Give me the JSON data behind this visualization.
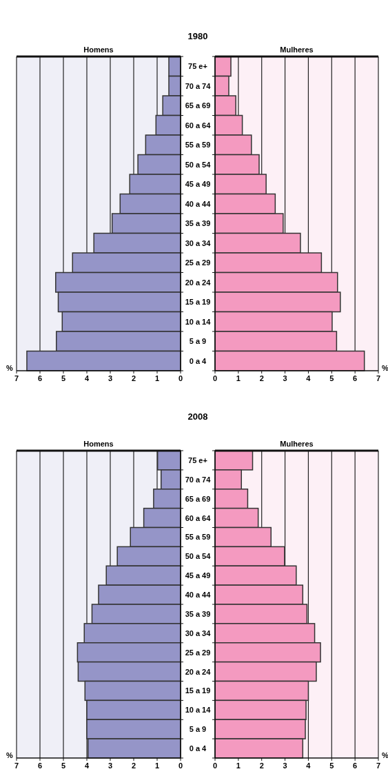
{
  "chart_data": [
    {
      "type": "bar",
      "orientation": "horizontal",
      "title": "1980",
      "subtitle": "Homens",
      "xlabel": "%",
      "categories": [
        "75 e+",
        "70 a 74",
        "65 a 69",
        "60 a 64",
        "55 a 59",
        "50 a 54",
        "45 a 49",
        "40 a 44",
        "35 a 39",
        "30 a 34",
        "25 a 29",
        "20 a 24",
        "15 a 19",
        "10 a 14",
        "5 a 9",
        "0 a 4"
      ],
      "color": "#9595c8",
      "values": [
        0.5,
        0.5,
        0.76,
        1.05,
        1.49,
        1.82,
        2.17,
        2.58,
        2.92,
        3.7,
        4.61,
        5.33,
        5.22,
        5.05,
        5.3,
        6.56
      ],
      "xlim": [
        7,
        0
      ],
      "xticks": [
        7,
        6,
        5,
        4,
        3,
        2,
        1,
        0
      ],
      "grid": "x"
    },
    {
      "type": "bar",
      "orientation": "horizontal",
      "subtitle": "Mulheres",
      "xlabel": "%",
      "categories": [
        "75 e+",
        "70 a 74",
        "65 a 69",
        "60 a 64",
        "55 a 59",
        "50 a 54",
        "45 a 49",
        "40 a 44",
        "35 a 39",
        "30 a 34",
        "25 a 29",
        "20 a 24",
        "15 a 19",
        "10 a 14",
        "5 a 9",
        "0 a 4"
      ],
      "color": "#f49ac0",
      "values": [
        0.68,
        0.59,
        0.89,
        1.17,
        1.56,
        1.89,
        2.19,
        2.58,
        2.92,
        3.66,
        4.56,
        5.25,
        5.37,
        5.02,
        5.21,
        6.4
      ],
      "xlim": [
        0,
        7
      ],
      "xticks": [
        0,
        1,
        2,
        3,
        4,
        5,
        6,
        7
      ],
      "grid": "x",
      "tick_labels": "x"
    },
    {
      "type": "bar",
      "orientation": "horizontal",
      "title": "2008",
      "subtitle": "Homens",
      "xlabel": "%",
      "categories": [
        "75 e+",
        "70 a 74",
        "65 a 69",
        "60 a 64",
        "55 a 59",
        "50 a 54",
        "45 a 49",
        "40 a 44",
        "35 a 39",
        "30 a 34",
        "25 a 29",
        "20 a 24",
        "15 a 19",
        "10 a 14",
        "5 a 9",
        "0 a 4"
      ],
      "color": "#9595c8",
      "values": [
        0.98,
        0.83,
        1.15,
        1.57,
        2.14,
        2.7,
        3.17,
        3.5,
        3.78,
        4.11,
        4.4,
        4.37,
        4.08,
        4.0,
        4.0,
        3.95
      ],
      "xlim": [
        7,
        0
      ],
      "xticks": [
        7,
        6,
        5,
        4,
        3,
        2,
        1,
        0
      ],
      "grid": "x"
    },
    {
      "type": "bar",
      "orientation": "horizontal",
      "subtitle": "Mulheres",
      "xlabel": "%",
      "categories": [
        "75 e+",
        "70 a 74",
        "65 a 69",
        "60 a 64",
        "55 a 59",
        "50 a 54",
        "45 a 49",
        "40 a 44",
        "35 a 39",
        "30 a 34",
        "25 a 29",
        "20 a 24",
        "15 a 19",
        "10 a 14",
        "5 a 9",
        "0 a 4"
      ],
      "color": "#f49ac0",
      "values": [
        1.61,
        1.13,
        1.4,
        1.85,
        2.4,
        2.98,
        3.48,
        3.76,
        3.94,
        4.27,
        4.52,
        4.34,
        4.0,
        3.9,
        3.87,
        3.76
      ],
      "xlim": [
        0,
        7
      ],
      "xticks": [
        0,
        1,
        2,
        3,
        4,
        5,
        6,
        7
      ],
      "grid": "x",
      "tick_labels": "x"
    }
  ]
}
